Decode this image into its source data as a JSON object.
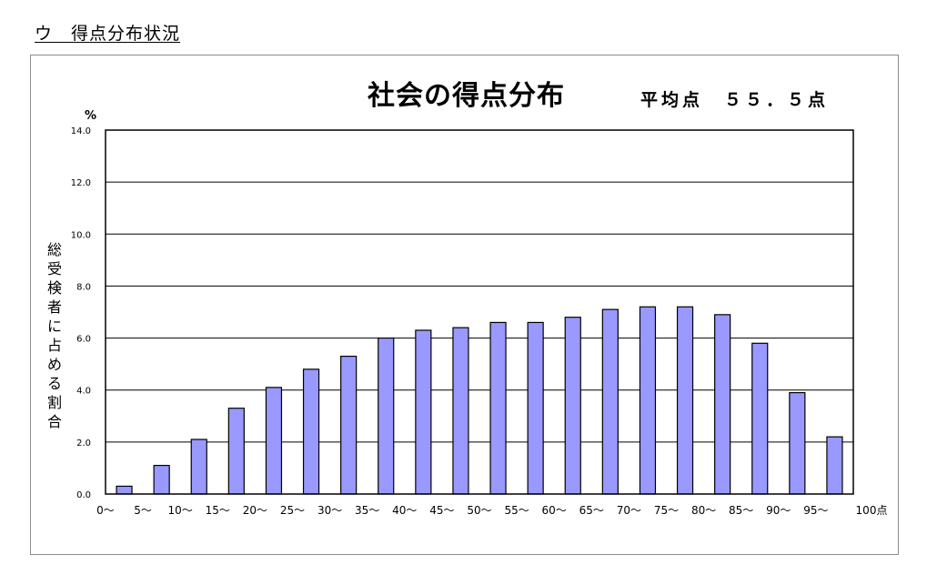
{
  "section_heading": "ウ　得点分布状況",
  "chart_data": {
    "type": "bar",
    "title": "社会の得点分布",
    "subtitle": "平均点　５５．５点",
    "ylabel": "総受検者に占める割合",
    "yunit": "%",
    "xlabel": "",
    "ylim": [
      0,
      14
    ],
    "yticks": [
      "0.0",
      "2.0",
      "4.0",
      "6.0",
      "8.0",
      "10.0",
      "12.0",
      "14.0"
    ],
    "grid": true,
    "categories": [
      "0～",
      "5～",
      "10～",
      "15～",
      "20～",
      "25～",
      "30～",
      "35～",
      "40～",
      "45～",
      "50～",
      "55～",
      "60～",
      "65～",
      "70～",
      "75～",
      "80～",
      "85～",
      "90～",
      "95～"
    ],
    "x_end_label": "100点",
    "values": [
      0.3,
      1.1,
      2.1,
      3.3,
      4.1,
      4.8,
      5.3,
      6.0,
      6.3,
      6.4,
      6.6,
      6.6,
      6.8,
      7.1,
      7.2,
      7.2,
      6.9,
      5.8,
      3.9,
      2.2
    ],
    "bar_color": "#9999ff",
    "bar_stroke": "#000000"
  }
}
